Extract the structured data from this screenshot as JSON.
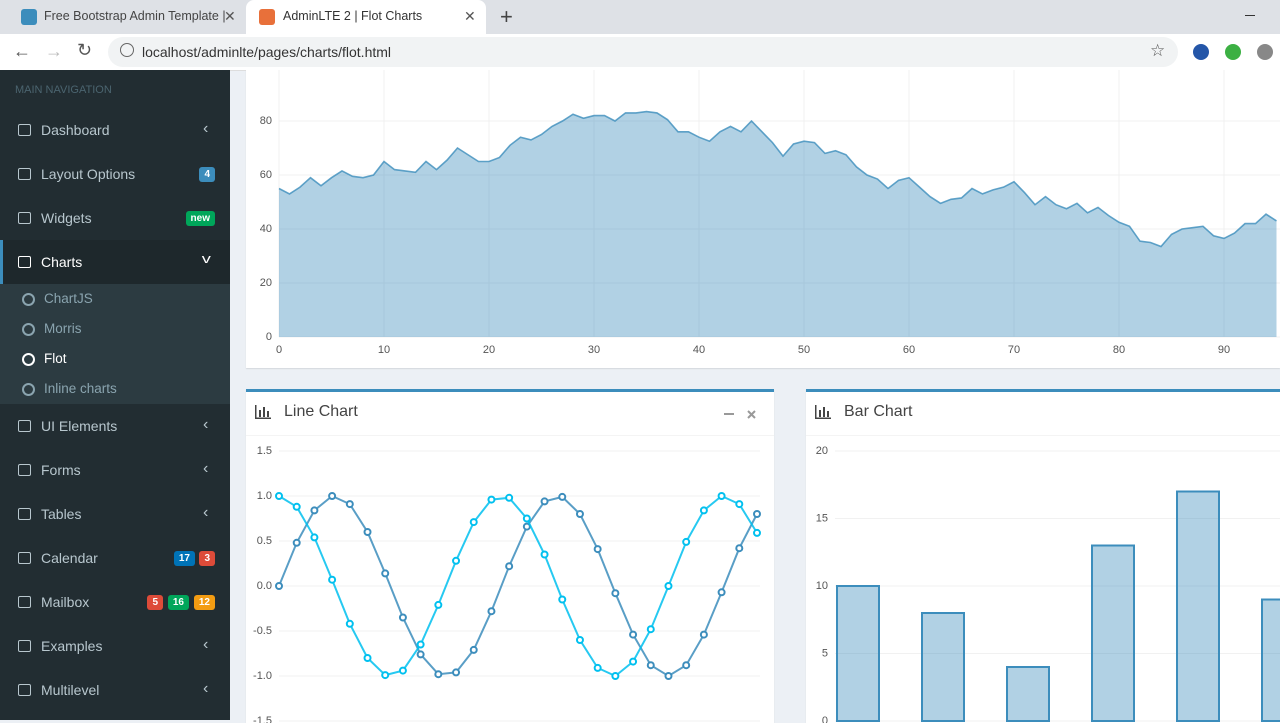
{
  "browser": {
    "tabs": [
      {
        "title": "Free Bootstrap Admin Template |"
      },
      {
        "title": "AdminLTE 2 | Flot Charts",
        "active": true
      }
    ],
    "url": "localhost/adminlte/pages/charts/flot.html"
  },
  "sidebar": {
    "header": "MAIN NAVIGATION",
    "items": [
      {
        "label": "Dashboard"
      },
      {
        "label": "Layout Options",
        "badges": [
          {
            "text": "4",
            "color": "#3c8dbc"
          }
        ]
      },
      {
        "label": "Widgets",
        "badges": [
          {
            "text": "new",
            "color": "#00a65a"
          }
        ]
      },
      {
        "label": "Charts",
        "active": true,
        "subitems": [
          {
            "label": "ChartJS"
          },
          {
            "label": "Morris"
          },
          {
            "label": "Flot",
            "active": true
          },
          {
            "label": "Inline charts"
          }
        ]
      },
      {
        "label": "UI Elements"
      },
      {
        "label": "Forms"
      },
      {
        "label": "Tables"
      },
      {
        "label": "Calendar",
        "badges": [
          {
            "text": "17",
            "color": "#0073b7"
          },
          {
            "text": "3",
            "color": "#dd4b39"
          }
        ]
      },
      {
        "label": "Mailbox",
        "badges": [
          {
            "text": "5",
            "color": "#dd4b39"
          },
          {
            "text": "16",
            "color": "#00a65a"
          },
          {
            "text": "12",
            "color": "#f39c12"
          }
        ]
      },
      {
        "label": "Examples"
      },
      {
        "label": "Multilevel"
      }
    ]
  },
  "chart_data": [
    {
      "type": "area",
      "color": "#3c8dbc",
      "grid": true,
      "x": [
        0,
        1,
        2,
        3,
        4,
        5,
        6,
        7,
        8,
        9,
        10,
        11,
        12,
        13,
        14,
        15,
        16,
        17,
        18,
        19,
        20,
        21,
        22,
        23,
        24,
        25,
        26,
        27,
        28,
        29,
        30,
        31,
        32,
        33,
        34,
        35,
        36,
        37,
        38,
        39,
        40,
        41,
        42,
        43,
        44,
        45,
        46,
        47,
        48,
        49,
        50,
        51,
        52,
        53,
        54,
        55,
        56,
        57,
        58,
        59,
        60,
        61,
        62,
        63,
        64,
        65,
        66,
        67,
        68,
        69,
        70,
        71,
        72,
        73,
        74,
        75,
        76,
        77,
        78,
        79,
        80,
        81,
        82,
        83,
        84,
        85,
        86,
        87,
        88,
        89,
        90,
        91,
        92,
        93,
        94,
        95
      ],
      "values": [
        55,
        53,
        55.5,
        59,
        56,
        59,
        61.5,
        59.5,
        59,
        60,
        65,
        62,
        61.5,
        61,
        65,
        62,
        65.5,
        70,
        67.5,
        65,
        65,
        66.5,
        71,
        74,
        73,
        75,
        78,
        80,
        82.5,
        81,
        82,
        82,
        80,
        83,
        83,
        83.5,
        83,
        80.5,
        76,
        76,
        74,
        72.5,
        76,
        78,
        76,
        80,
        76,
        72,
        67,
        71.5,
        72.5,
        72,
        68,
        69,
        67.5,
        63,
        60,
        58.5,
        55,
        58,
        59,
        55.5,
        52,
        49.5,
        51,
        51.5,
        55,
        53,
        54.5,
        55.5,
        57.5,
        53.5,
        49,
        52,
        49,
        47.5,
        49.5,
        46,
        48,
        45,
        42.5,
        41,
        35.5,
        35,
        33.5,
        38,
        40,
        40.5,
        41,
        37.5,
        36.5,
        38.5,
        42,
        42,
        45.5,
        43
      ],
      "xlim": [
        0,
        100
      ],
      "xticks": [
        0,
        10,
        20,
        30,
        40,
        50,
        60,
        70,
        80,
        90
      ],
      "ylim": [
        0,
        100
      ],
      "yticks": [
        0,
        20,
        40,
        60,
        80
      ]
    },
    {
      "type": "line",
      "title": "Line Chart",
      "grid": true,
      "x": [
        0,
        0.5,
        1,
        1.5,
        2,
        2.5,
        3,
        3.5,
        4,
        4.5,
        5,
        5.5,
        6,
        6.5,
        7,
        7.5,
        8,
        8.5,
        9,
        9.5,
        10,
        10.5,
        11,
        11.5,
        12,
        12.5,
        13,
        13.5
      ],
      "series": [
        {
          "color": "#3c8dbc",
          "values": [
            0,
            0.48,
            0.84,
            1,
            0.91,
            0.6,
            0.14,
            -0.35,
            -0.76,
            -0.98,
            -0.96,
            -0.71,
            -0.28,
            0.22,
            0.66,
            0.94,
            0.99,
            0.8,
            0.41,
            -0.08,
            -0.54,
            -0.88,
            -1,
            -0.88,
            -0.54,
            -0.07,
            0.42,
            0.8
          ]
        },
        {
          "color": "#00c0ef",
          "values": [
            1,
            0.88,
            0.54,
            0.07,
            -0.42,
            -0.8,
            -0.99,
            -0.94,
            -0.65,
            -0.21,
            0.28,
            0.71,
            0.96,
            0.98,
            0.75,
            0.35,
            -0.15,
            -0.6,
            -0.91,
            -1,
            -0.84,
            -0.48,
            0,
            0.49,
            0.84,
            1,
            0.91,
            0.59
          ]
        }
      ],
      "xlim": [
        0,
        13.5
      ],
      "ylim": [
        -1.5,
        1.5
      ],
      "yticks": [
        -1.5,
        {
          "value": -1,
          "label": "-1.0"
        },
        -0.5,
        {
          "value": 0,
          "label": "0.0"
        },
        0.5,
        {
          "value": 1,
          "label": "1.0"
        },
        1.5
      ]
    },
    {
      "type": "bar",
      "title": "Bar Chart",
      "color": "#3c8dbc",
      "grid": true,
      "values": [
        10,
        8,
        4,
        13,
        17,
        9
      ],
      "ylim": [
        0,
        20
      ],
      "yticks": [
        0,
        5,
        10,
        15,
        20
      ]
    }
  ]
}
